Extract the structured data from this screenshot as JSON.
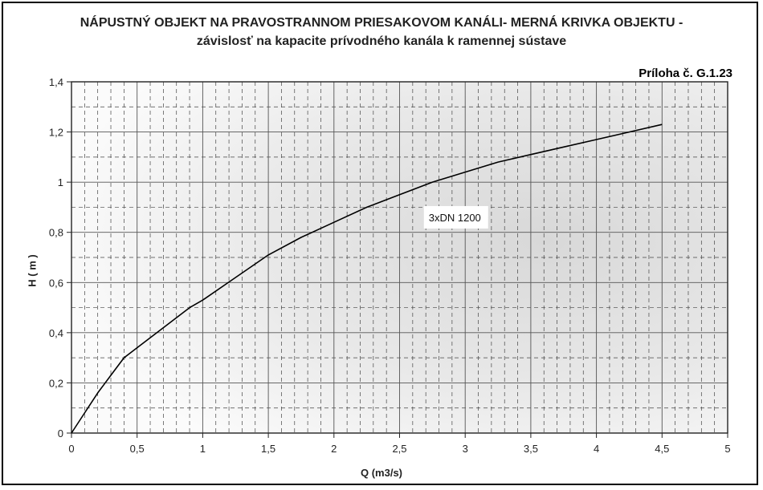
{
  "title_line1": "NÁPUSTNÝ OBJEKT NA PRAVOSTRANNOM PRIESAKOVOM KANÁLI- MERNÁ KRIVKA OBJEKTU -",
  "title_line2": "závislosť na kapacite prívodného kanála  k ramennej sústave",
  "annex": "Príloha č. G.1.23",
  "chart_data": {
    "type": "line",
    "title": "NÁPUSTNÝ OBJEKT NA PRAVOSTRANNOM PRIESAKOVOM KANÁLI- MERNÁ KRIVKA OBJEKTU - závislosť na kapacite prívodného kanála  k ramennej sústave",
    "xlabel": "Q (m3/s)",
    "ylabel": "H ( m )",
    "xlim": [
      0,
      5
    ],
    "ylim": [
      0,
      1.4
    ],
    "x_ticks": [
      "0",
      "0,5",
      "1",
      "1,5",
      "2",
      "2,5",
      "3",
      "3,5",
      "4",
      "4,5",
      "5"
    ],
    "y_ticks": [
      "0",
      "0,2",
      "0,4",
      "0,6",
      "0,8",
      "1",
      "1,2",
      "1,4"
    ],
    "grid": true,
    "series": [
      {
        "name": "3xDN 1200",
        "x": [
          0,
          0.1,
          0.2,
          0.3,
          0.4,
          0.5,
          0.7,
          0.9,
          1.0,
          1.25,
          1.5,
          1.75,
          2.0,
          2.25,
          2.5,
          2.75,
          3.0,
          3.25,
          3.5,
          3.75,
          4.0,
          4.25,
          4.5
        ],
        "y": [
          0,
          0.08,
          0.16,
          0.23,
          0.3,
          0.34,
          0.42,
          0.5,
          0.53,
          0.62,
          0.71,
          0.78,
          0.84,
          0.9,
          0.95,
          1.0,
          1.04,
          1.08,
          1.11,
          1.14,
          1.17,
          1.2,
          1.23
        ]
      }
    ],
    "annotations": [
      {
        "text": "3xDN 1200",
        "x": 2.93,
        "y": 0.86
      }
    ],
    "colors": {
      "line": "#000000",
      "background": "#e6e6e6",
      "grid": "#333333"
    }
  }
}
